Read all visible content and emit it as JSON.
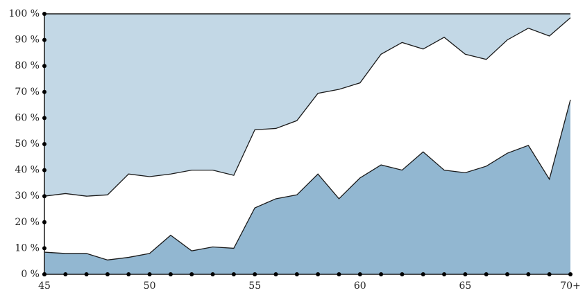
{
  "colors": {
    "lower": "#92b7d1",
    "middle": "#ffffff",
    "upper": "#c3d8e6",
    "line": "#1a1a1a",
    "marker": "#000000"
  },
  "chart_data": {
    "type": "area",
    "stacked": true,
    "x": [
      45,
      46,
      47,
      48,
      49,
      50,
      51,
      52,
      53,
      54,
      55,
      56,
      57,
      58,
      59,
      60,
      61,
      62,
      63,
      64,
      65,
      66,
      67,
      68,
      69,
      70
    ],
    "x_tick_labels": [
      "45",
      "50",
      "55",
      "60",
      "65",
      "70+"
    ],
    "y_tick_labels": [
      "0 %",
      "10 %",
      "20 %",
      "30 %",
      "40 %",
      "50 %",
      "60 %",
      "70 %",
      "80 %",
      "90 %",
      "100 %"
    ],
    "ylim": [
      0,
      100
    ],
    "series": [
      {
        "values": [
          8.5,
          8,
          8,
          5.5,
          6.5,
          8,
          15,
          9,
          10.5,
          10,
          25.5,
          29,
          30.5,
          38.5,
          29,
          37,
          42,
          40,
          47,
          40,
          39,
          41.5,
          46.5,
          49.5,
          36.5,
          67
        ]
      },
      {
        "values": [
          21.5,
          23,
          22,
          25,
          32,
          29.5,
          23.5,
          31,
          29.5,
          28,
          30,
          27,
          28.5,
          31,
          42,
          36.5,
          42.5,
          49,
          39.5,
          51,
          45.5,
          41,
          43.5,
          45,
          55,
          31.5
        ]
      },
      {
        "values": [
          70,
          69,
          70,
          69.5,
          61.5,
          62.5,
          61.5,
          60,
          60,
          62,
          44.5,
          44,
          41,
          30.5,
          29,
          26.5,
          15.5,
          11,
          13.5,
          9,
          15.5,
          17.5,
          10,
          5.5,
          8.5,
          1.5
        ]
      }
    ]
  }
}
